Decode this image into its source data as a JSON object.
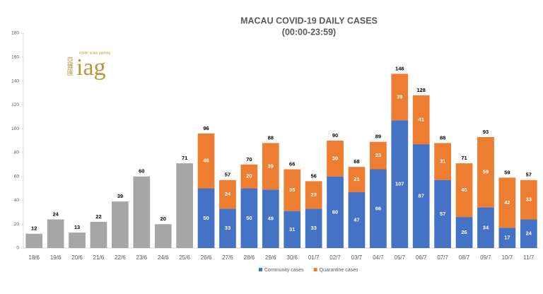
{
  "chart_data": {
    "type": "stacked_bar",
    "title": "MACAU COVID-19 DAILY CASES",
    "subtitle": "(00:00-23:59)",
    "logo": {
      "chinese": "亞博匯",
      "tagline": "inside asian gaming",
      "name": "iag"
    },
    "categories": [
      "18/6",
      "19/6",
      "20/6",
      "21/6",
      "22/6",
      "23/6",
      "24/6",
      "25/6",
      "26/6",
      "27/6",
      "28/6",
      "29/6",
      "30/6",
      "01/7",
      "02/7",
      "03/7",
      "04/7",
      "05/7",
      "06/7",
      "07/7",
      "08/7",
      "09/7",
      "10/7",
      "11/7"
    ],
    "series": [
      {
        "color": "#a6a6a6",
        "values": [
          12,
          24,
          13,
          22,
          39,
          60,
          20,
          71,
          null,
          null,
          null,
          null,
          null,
          null,
          null,
          null,
          null,
          null,
          null,
          null,
          null,
          null,
          null,
          null
        ]
      },
      {
        "name": "Community cases",
        "color": "#4472c4",
        "values": [
          null,
          null,
          null,
          null,
          null,
          null,
          null,
          null,
          50,
          33,
          50,
          49,
          31,
          33,
          60,
          47,
          66,
          107,
          87,
          57,
          26,
          34,
          17,
          24
        ]
      },
      {
        "name": "Quarantine cases",
        "color": "#ed7d31",
        "values": [
          null,
          null,
          null,
          null,
          null,
          null,
          null,
          null,
          46,
          24,
          20,
          39,
          35,
          23,
          30,
          21,
          23,
          39,
          41,
          31,
          45,
          59,
          42,
          33
        ]
      }
    ],
    "totals": [
      12,
      24,
      13,
      22,
      39,
      60,
      20,
      71,
      96,
      57,
      70,
      88,
      66,
      56,
      90,
      68,
      89,
      146,
      128,
      88,
      71,
      93,
      59,
      57
    ],
    "ylim": [
      0,
      180
    ],
    "yticks": [
      0,
      20,
      40,
      60,
      80,
      100,
      120,
      140,
      160,
      180
    ],
    "grid": false,
    "legend": "bottom"
  }
}
